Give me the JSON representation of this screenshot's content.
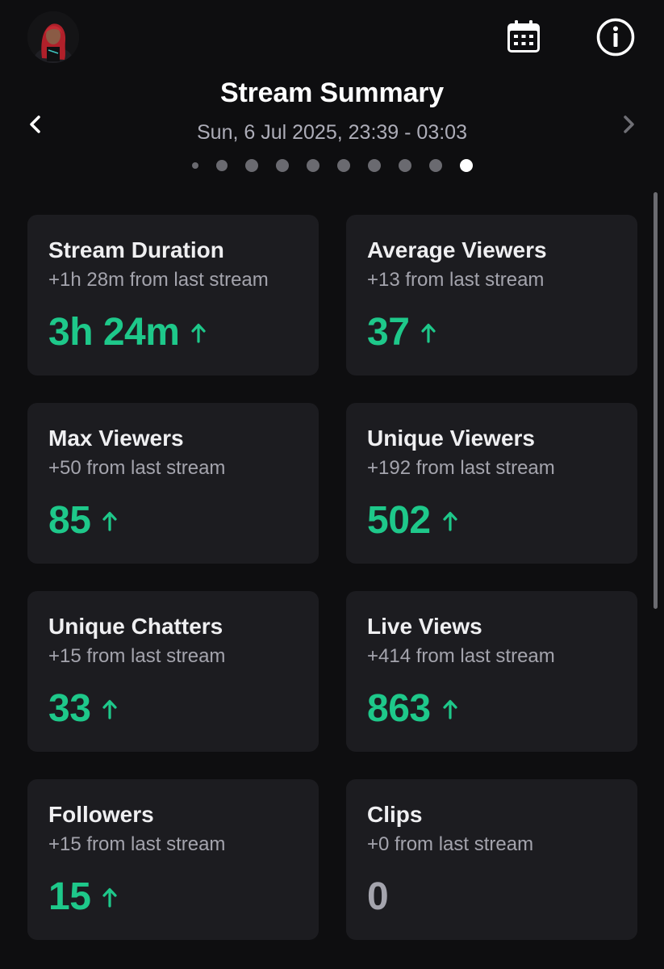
{
  "header": {
    "title": "Stream Summary",
    "date_range": "Sun, 6 Jul 2025, 23:39 - 03:03"
  },
  "icons": {
    "calendar": "calendar-icon",
    "info": "info-icon",
    "prev": "chevron-left-icon",
    "next": "chevron-right-icon",
    "trend_up": "arrow-up-icon"
  },
  "pagination": {
    "count": 10,
    "active_index": 9
  },
  "colors": {
    "positive": "#1ec88a",
    "neutral": "#a4a4ad",
    "card_bg": "#1c1c20",
    "page_bg": "#0e0e10"
  },
  "stats": [
    {
      "title": "Stream Duration",
      "change": "+1h 28m from last stream",
      "value": "3h 24m",
      "trend": "up"
    },
    {
      "title": "Average Viewers",
      "change": "+13 from last stream",
      "value": "37",
      "trend": "up"
    },
    {
      "title": "Max Viewers",
      "change": "+50 from last stream",
      "value": "85",
      "trend": "up"
    },
    {
      "title": "Unique Viewers",
      "change": "+192 from last stream",
      "value": "502",
      "trend": "up"
    },
    {
      "title": "Unique Chatters",
      "change": "+15 from last stream",
      "value": "33",
      "trend": "up"
    },
    {
      "title": "Live Views",
      "change": "+414 from last stream",
      "value": "863",
      "trend": "up"
    },
    {
      "title": "Followers",
      "change": "+15 from last stream",
      "value": "15",
      "trend": "up"
    },
    {
      "title": "Clips",
      "change": "+0 from last stream",
      "value": "0",
      "trend": "none"
    }
  ]
}
